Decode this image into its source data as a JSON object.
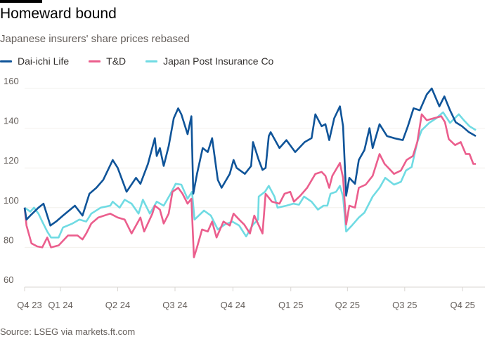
{
  "header": {
    "title": "Homeward bound",
    "subtitle": "Japanese insurers' share prices rebased"
  },
  "footer": {
    "source": "Source: LSEG via markets.ft.com"
  },
  "chart_data": {
    "type": "line",
    "title": "Homeward bound",
    "subtitle": "Japanese insurers' share prices rebased",
    "xlabel": "",
    "ylabel": "",
    "ylim": [
      60,
      160
    ],
    "yticks": [
      60,
      80,
      100,
      120,
      140,
      160
    ],
    "xlim": [
      "2023-11-05",
      "2025-10-22"
    ],
    "xticks": [
      {
        "label": "Q4 23",
        "date": "2023-11-05"
      },
      {
        "label": "Q1 24",
        "date": "2024-01-01"
      },
      {
        "label": "Q2 24",
        "date": "2024-04-01"
      },
      {
        "label": "Q3 24",
        "date": "2024-07-01"
      },
      {
        "label": "Q4 24",
        "date": "2024-10-01"
      },
      {
        "label": "Q1 25",
        "date": "2025-01-01"
      },
      {
        "label": "Q2 25",
        "date": "2025-04-01"
      },
      {
        "label": "Q3 25",
        "date": "2025-07-01"
      },
      {
        "label": "Q4 25",
        "date": "2025-10-01"
      }
    ],
    "grid": true,
    "legend_position": "top-left",
    "series": [
      {
        "name": "Dai-ichi Life",
        "color": "#0f5499",
        "points": [
          [
            "2023-11-05",
            100
          ],
          [
            "2023-11-08",
            94
          ],
          [
            "2023-11-14",
            96
          ],
          [
            "2023-11-27",
            100
          ],
          [
            "2023-12-05",
            102
          ],
          [
            "2023-12-16",
            91
          ],
          [
            "2023-12-25",
            93
          ],
          [
            "2024-01-05",
            96
          ],
          [
            "2024-01-24",
            101
          ],
          [
            "2024-02-05",
            96
          ],
          [
            "2024-02-16",
            107
          ],
          [
            "2024-02-27",
            110
          ],
          [
            "2024-03-09",
            114
          ],
          [
            "2024-03-24",
            124
          ],
          [
            "2024-04-01",
            120
          ],
          [
            "2024-04-15",
            108
          ],
          [
            "2024-04-30",
            115
          ],
          [
            "2024-05-07",
            112
          ],
          [
            "2024-05-19",
            122
          ],
          [
            "2024-05-30",
            135
          ],
          [
            "2024-06-02",
            126
          ],
          [
            "2024-06-07",
            130
          ],
          [
            "2024-06-13",
            121
          ],
          [
            "2024-06-21",
            131
          ],
          [
            "2024-06-29",
            145
          ],
          [
            "2024-07-06",
            150
          ],
          [
            "2024-07-11",
            147
          ],
          [
            "2024-07-21",
            137
          ],
          [
            "2024-07-27",
            146
          ],
          [
            "2024-07-30",
            107
          ],
          [
            "2024-08-05",
            117
          ],
          [
            "2024-08-14",
            130
          ],
          [
            "2024-08-22",
            128
          ],
          [
            "2024-08-29",
            135
          ],
          [
            "2024-09-07",
            114
          ],
          [
            "2024-09-13",
            110
          ],
          [
            "2024-09-26",
            117
          ],
          [
            "2024-10-02",
            124
          ],
          [
            "2024-10-07",
            120
          ],
          [
            "2024-10-20",
            117
          ],
          [
            "2024-10-30",
            121
          ],
          [
            "2024-11-02",
            133
          ],
          [
            "2024-11-11",
            124
          ],
          [
            "2024-11-17",
            119
          ],
          [
            "2024-11-22",
            120
          ],
          [
            "2024-11-27",
            136
          ],
          [
            "2024-11-30",
            138
          ],
          [
            "2024-12-14",
            130
          ],
          [
            "2024-12-25",
            134
          ],
          [
            "2025-01-08",
            128
          ],
          [
            "2025-01-23",
            133
          ],
          [
            "2025-02-03",
            135
          ],
          [
            "2025-02-09",
            147
          ],
          [
            "2025-02-19",
            141
          ],
          [
            "2025-02-25",
            142
          ],
          [
            "2025-03-03",
            134
          ],
          [
            "2025-03-11",
            145
          ],
          [
            "2025-03-20",
            151
          ],
          [
            "2025-03-25",
            141
          ],
          [
            "2025-03-30",
            106
          ],
          [
            "2025-04-04",
            115
          ],
          [
            "2025-04-13",
            112
          ],
          [
            "2025-04-19",
            124
          ],
          [
            "2025-04-28",
            129
          ],
          [
            "2025-05-06",
            140
          ],
          [
            "2025-05-11",
            130
          ],
          [
            "2025-05-22",
            142
          ],
          [
            "2025-06-03",
            136
          ],
          [
            "2025-06-14",
            135
          ],
          [
            "2025-06-28",
            134
          ],
          [
            "2025-07-06",
            141
          ],
          [
            "2025-07-15",
            150
          ],
          [
            "2025-07-25",
            149
          ],
          [
            "2025-08-05",
            157
          ],
          [
            "2025-08-13",
            160
          ],
          [
            "2025-08-25",
            151
          ],
          [
            "2025-09-02",
            156
          ],
          [
            "2025-09-11",
            149
          ],
          [
            "2025-09-20",
            143
          ],
          [
            "2025-09-30",
            141
          ],
          [
            "2025-10-11",
            138
          ],
          [
            "2025-10-22",
            136
          ]
        ]
      },
      {
        "name": "T&D",
        "color": "#eb5e8d",
        "points": [
          [
            "2023-11-05",
            100
          ],
          [
            "2023-11-08",
            91
          ],
          [
            "2023-11-16",
            82
          ],
          [
            "2023-11-25",
            80.5
          ],
          [
            "2023-12-03",
            80
          ],
          [
            "2023-12-11",
            85
          ],
          [
            "2023-12-17",
            80
          ],
          [
            "2023-12-29",
            81
          ],
          [
            "2024-01-13",
            86
          ],
          [
            "2024-01-28",
            86
          ],
          [
            "2024-02-05",
            84
          ],
          [
            "2024-02-11",
            87
          ],
          [
            "2024-02-19",
            92
          ],
          [
            "2024-03-01",
            95
          ],
          [
            "2024-03-20",
            97
          ],
          [
            "2024-04-01",
            95
          ],
          [
            "2024-04-12",
            94
          ],
          [
            "2024-04-23",
            87
          ],
          [
            "2024-05-07",
            95
          ],
          [
            "2024-05-13",
            88
          ],
          [
            "2024-05-26",
            97
          ],
          [
            "2024-05-30",
            101
          ],
          [
            "2024-06-07",
            99
          ],
          [
            "2024-06-13",
            92
          ],
          [
            "2024-06-21",
            97
          ],
          [
            "2024-06-27",
            108
          ],
          [
            "2024-07-06",
            110
          ],
          [
            "2024-07-13",
            107
          ],
          [
            "2024-07-21",
            102
          ],
          [
            "2024-07-27",
            104.5
          ],
          [
            "2024-07-31",
            75
          ],
          [
            "2024-08-05",
            80
          ],
          [
            "2024-08-13",
            89
          ],
          [
            "2024-08-22",
            88
          ],
          [
            "2024-08-29",
            93
          ],
          [
            "2024-09-05",
            85
          ],
          [
            "2024-09-16",
            93
          ],
          [
            "2024-09-26",
            91
          ],
          [
            "2024-10-02",
            97
          ],
          [
            "2024-10-11",
            94
          ],
          [
            "2024-10-19",
            91.5
          ],
          [
            "2024-10-28",
            87
          ],
          [
            "2024-11-04",
            96
          ],
          [
            "2024-11-17",
            87
          ],
          [
            "2024-11-22",
            107
          ],
          [
            "2024-12-02",
            103
          ],
          [
            "2024-12-14",
            102
          ],
          [
            "2024-12-22",
            107
          ],
          [
            "2024-12-31",
            108
          ],
          [
            "2025-01-06",
            103
          ],
          [
            "2025-01-16",
            106
          ],
          [
            "2025-01-27",
            110
          ],
          [
            "2025-02-09",
            117
          ],
          [
            "2025-02-19",
            118
          ],
          [
            "2025-02-25",
            116
          ],
          [
            "2025-03-03",
            110
          ],
          [
            "2025-03-08",
            116
          ],
          [
            "2025-03-20",
            122.5
          ],
          [
            "2025-03-25",
            115
          ],
          [
            "2025-03-30",
            91.5
          ],
          [
            "2025-04-04",
            101
          ],
          [
            "2025-04-13",
            100
          ],
          [
            "2025-04-19",
            110
          ],
          [
            "2025-04-30",
            111.6
          ],
          [
            "2025-05-11",
            116
          ],
          [
            "2025-05-22",
            127
          ],
          [
            "2025-05-30",
            122
          ],
          [
            "2025-06-14",
            117
          ],
          [
            "2025-06-25",
            118.7
          ],
          [
            "2025-07-04",
            124
          ],
          [
            "2025-07-14",
            126
          ],
          [
            "2025-07-21",
            133
          ],
          [
            "2025-07-28",
            147
          ],
          [
            "2025-08-05",
            144
          ],
          [
            "2025-08-16",
            145
          ],
          [
            "2025-08-28",
            146
          ],
          [
            "2025-09-03",
            143
          ],
          [
            "2025-09-09",
            134.5
          ],
          [
            "2025-09-19",
            131.5
          ],
          [
            "2025-09-28",
            133
          ],
          [
            "2025-10-06",
            127
          ],
          [
            "2025-10-12",
            127
          ],
          [
            "2025-10-18",
            122
          ],
          [
            "2025-10-22",
            122
          ]
        ]
      },
      {
        "name": "Japan Post Insurance Co",
        "color": "#70dbe3",
        "points": [
          [
            "2023-11-05",
            100
          ],
          [
            "2023-11-14",
            98
          ],
          [
            "2023-11-20",
            100
          ],
          [
            "2023-11-27",
            97
          ],
          [
            "2023-12-03",
            93
          ],
          [
            "2023-12-11",
            88
          ],
          [
            "2023-12-17",
            85
          ],
          [
            "2023-12-29",
            85
          ],
          [
            "2024-01-05",
            90
          ],
          [
            "2024-01-20",
            92
          ],
          [
            "2024-01-31",
            94
          ],
          [
            "2024-02-11",
            93
          ],
          [
            "2024-02-19",
            97
          ],
          [
            "2024-03-05",
            100
          ],
          [
            "2024-03-20",
            101
          ],
          [
            "2024-03-24",
            103
          ],
          [
            "2024-04-04",
            100
          ],
          [
            "2024-04-12",
            104
          ],
          [
            "2024-04-23",
            102
          ],
          [
            "2024-05-04",
            97
          ],
          [
            "2024-05-11",
            104
          ],
          [
            "2024-05-22",
            97
          ],
          [
            "2024-06-02",
            103
          ],
          [
            "2024-06-13",
            101
          ],
          [
            "2024-06-24",
            107
          ],
          [
            "2024-07-02",
            112
          ],
          [
            "2024-07-11",
            111.6
          ],
          [
            "2024-07-21",
            104.5
          ],
          [
            "2024-07-28",
            108
          ],
          [
            "2024-08-01",
            94
          ],
          [
            "2024-08-16",
            98.5
          ],
          [
            "2024-08-27",
            96
          ],
          [
            "2024-09-07",
            89
          ],
          [
            "2024-09-18",
            91.5
          ],
          [
            "2024-09-30",
            93
          ],
          [
            "2024-10-11",
            91
          ],
          [
            "2024-10-22",
            85.5
          ],
          [
            "2024-11-02",
            91.5
          ],
          [
            "2024-11-10",
            94
          ],
          [
            "2024-11-11",
            105.6
          ],
          [
            "2024-11-21",
            108
          ],
          [
            "2024-11-27",
            111
          ],
          [
            "2024-12-06",
            105.6
          ],
          [
            "2024-12-11",
            100
          ],
          [
            "2024-12-25",
            101
          ],
          [
            "2025-01-05",
            102
          ],
          [
            "2025-01-14",
            101.5
          ],
          [
            "2025-01-22",
            105.6
          ],
          [
            "2025-02-03",
            103
          ],
          [
            "2025-02-13",
            99
          ],
          [
            "2025-02-22",
            101
          ],
          [
            "2025-02-28",
            101
          ],
          [
            "2025-03-05",
            107
          ],
          [
            "2025-03-14",
            108
          ],
          [
            "2025-03-20",
            111
          ],
          [
            "2025-03-25",
            105.6
          ],
          [
            "2025-03-30",
            88
          ],
          [
            "2025-04-08",
            91
          ],
          [
            "2025-04-19",
            95
          ],
          [
            "2025-04-28",
            97.5
          ],
          [
            "2025-05-11",
            105.6
          ],
          [
            "2025-05-22",
            110
          ],
          [
            "2025-05-31",
            115
          ],
          [
            "2025-06-14",
            111.6
          ],
          [
            "2025-06-25",
            113
          ],
          [
            "2025-07-03",
            118.7
          ],
          [
            "2025-07-12",
            120.5
          ],
          [
            "2025-07-21",
            133
          ],
          [
            "2025-07-28",
            139
          ],
          [
            "2025-08-09",
            142.7
          ],
          [
            "2025-08-20",
            145
          ],
          [
            "2025-08-31",
            148
          ],
          [
            "2025-09-11",
            142.7
          ],
          [
            "2025-09-25",
            147
          ],
          [
            "2025-10-03",
            144
          ],
          [
            "2025-10-12",
            141
          ],
          [
            "2025-10-22",
            139
          ]
        ]
      }
    ]
  }
}
